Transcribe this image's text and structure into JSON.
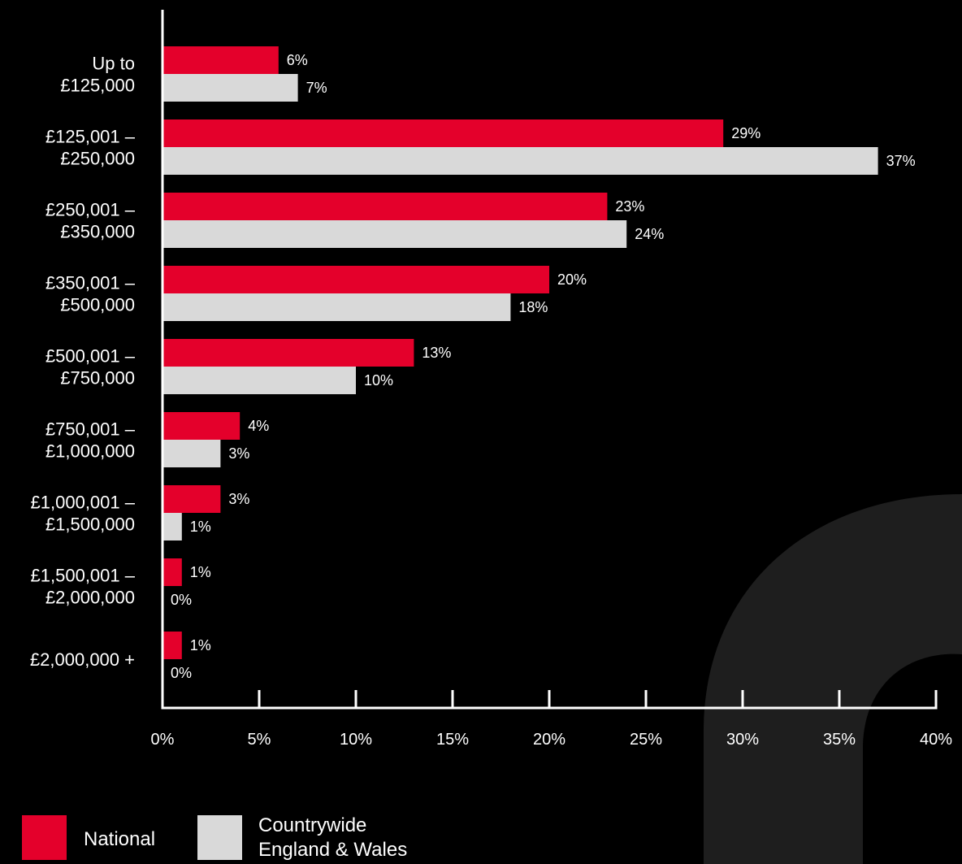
{
  "chart_data": {
    "type": "bar",
    "orientation": "horizontal",
    "categories": [
      [
        "Up to",
        "£125,000"
      ],
      [
        "£125,001 –",
        "£250,000"
      ],
      [
        "£250,001 –",
        "£350,000"
      ],
      [
        "£350,001 –",
        "£500,000"
      ],
      [
        "£500,001 –",
        "£750,000"
      ],
      [
        "£750,001 –",
        "£1,000,000"
      ],
      [
        "£1,000,001 –",
        "£1,500,000"
      ],
      [
        "£1,500,001 –",
        "£2,000,000"
      ],
      [
        "£2,000,000 +"
      ]
    ],
    "series": [
      {
        "name": "National",
        "color": "#e4002b",
        "values": [
          6,
          29,
          23,
          20,
          13,
          4,
          3,
          1,
          1
        ]
      },
      {
        "name_lines": [
          "Countrywide",
          "England & Wales"
        ],
        "color": "#d9d9d9",
        "values": [
          7,
          37,
          24,
          18,
          10,
          3,
          1,
          0,
          0
        ]
      }
    ],
    "value_suffix": "%",
    "xlim": [
      0,
      40
    ],
    "xticks": [
      0,
      5,
      10,
      15,
      20,
      25,
      30,
      35,
      40
    ],
    "xtick_labels": [
      "0%",
      "5%",
      "10%",
      "15%",
      "20%",
      "25%",
      "30%",
      "35%",
      "40%"
    ],
    "grid": false,
    "legend_position": "bottom-left",
    "background": "#000000",
    "watermark_color": "#1e1e1e"
  }
}
